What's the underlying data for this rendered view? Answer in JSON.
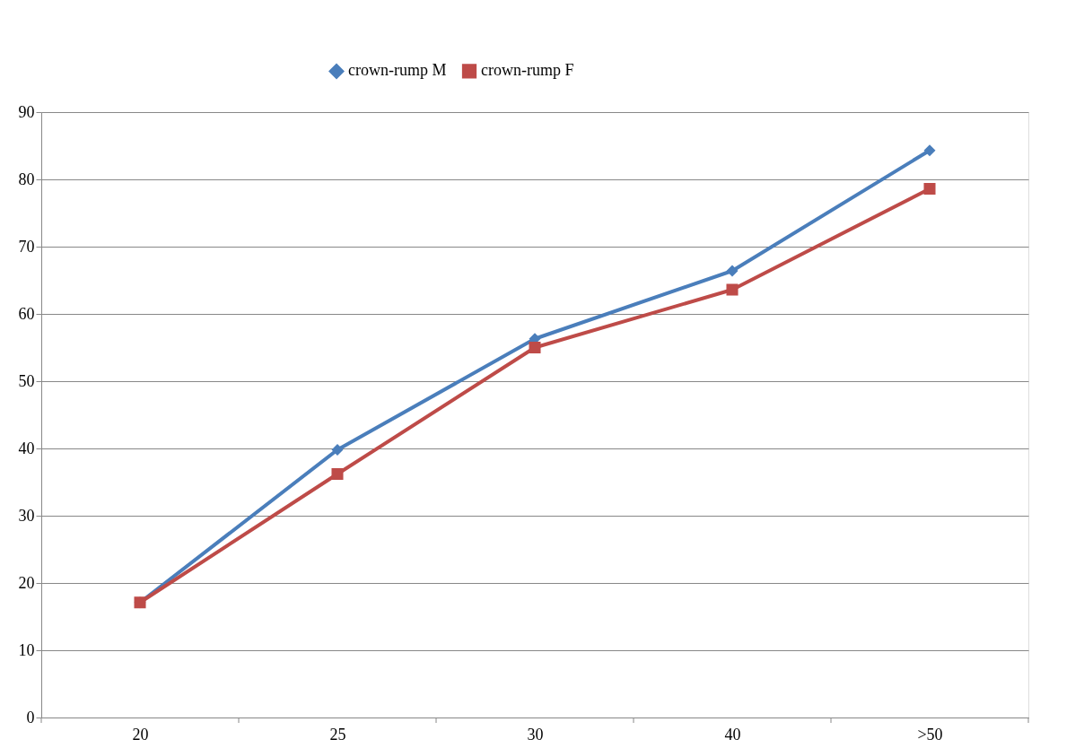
{
  "chart_data": {
    "type": "line",
    "categories": [
      "20",
      "25",
      "30",
      "40",
      ">50"
    ],
    "series": [
      {
        "name": "crown-rump M",
        "color": "#4a7ebb",
        "marker": "diamond",
        "values": [
          17.1,
          39.8,
          56.3,
          66.4,
          84.3
        ]
      },
      {
        "name": "crown-rump F",
        "color": "#be4b48",
        "marker": "square",
        "values": [
          17.1,
          36.2,
          55.0,
          63.6,
          78.6
        ]
      }
    ],
    "ylim": [
      0,
      90
    ],
    "yticks": [
      0,
      10,
      20,
      30,
      40,
      50,
      60,
      70,
      80,
      90
    ],
    "grid": "y",
    "legend": "top",
    "line_style": "solid"
  }
}
